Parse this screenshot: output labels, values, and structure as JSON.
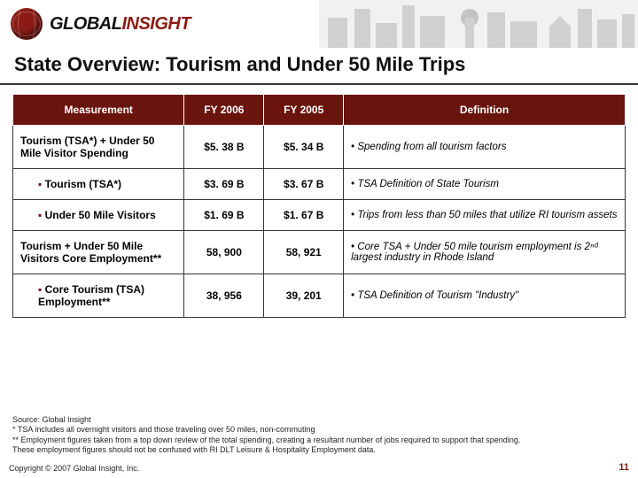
{
  "logo": {
    "part1": "GLOBAL",
    "part2": "INSIGHT"
  },
  "title": "State Overview:  Tourism and Under 50 Mile Trips",
  "table": {
    "header": {
      "col1": "Measurement",
      "col2": "FY 2006",
      "col3": "FY 2005",
      "col4": "Definition"
    },
    "rows": [
      {
        "sub": false,
        "measurement": "Tourism (TSA*) + Under 50 Mile Visitor Spending",
        "fy2006": "$5. 38 B",
        "fy2005": "$5. 34 B",
        "definition": "Spending from all tourism factors"
      },
      {
        "sub": true,
        "measurement": "Tourism (TSA*)",
        "fy2006": "$3. 69 B",
        "fy2005": "$3. 67 B",
        "definition": "TSA Definition of State Tourism"
      },
      {
        "sub": true,
        "measurement": "Under 50 Mile Visitors",
        "fy2006": "$1. 69 B",
        "fy2005": "$1. 67 B",
        "definition": "Trips from less than 50 miles that utilize RI tourism assets"
      },
      {
        "sub": false,
        "measurement": "Tourism + Under 50 Mile Visitors Core Employment**",
        "fy2006": "58, 900",
        "fy2005": "58, 921",
        "definition": "Core TSA + Under 50 mile tourism employment is 2ⁿᵈ largest industry in Rhode Island"
      },
      {
        "sub": true,
        "measurement": "Core Tourism (TSA) Employment**",
        "fy2006": "38, 956",
        "fy2005": "39, 201",
        "definition": "TSA Definition of Tourism \"Industry\""
      }
    ]
  },
  "footnotes": {
    "l1": "Source:  Global Insight",
    "l2": "* TSA includes all overnight visitors and those traveling over 50 miles, non-commuting",
    "l3": "** Employment figures taken from a top down review of the total spending, creating a resultant number of jobs required to support that spending.",
    "l4": "These employment figures should not be confused with RI DLT Leisure & Hospitality Employment data."
  },
  "copyright": "Copyright © 2007 Global Insight, Inc.",
  "pagenum": "11",
  "colors": {
    "header_bg": "#6a140e",
    "accent": "#8a1c15",
    "rule": "#333333"
  }
}
